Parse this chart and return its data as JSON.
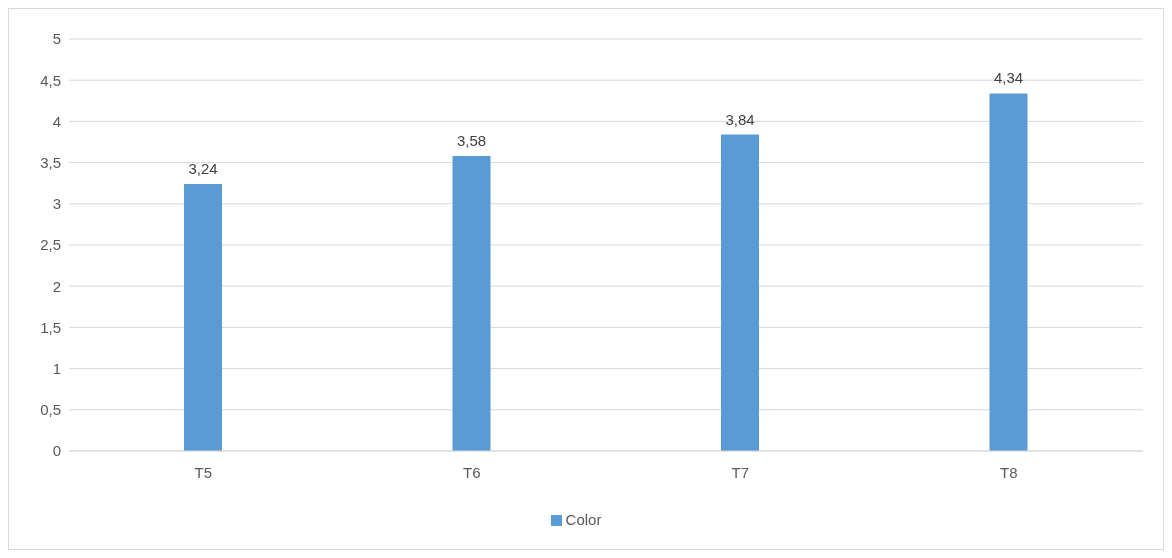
{
  "chart_data": {
    "type": "bar",
    "categories": [
      "T5",
      "T6",
      "T7",
      "T8"
    ],
    "series": [
      {
        "name": "Color",
        "color": "#5b9bd5",
        "values": [
          3.24,
          3.58,
          3.84,
          4.34
        ],
        "value_labels": [
          "3,24",
          "3,58",
          "3,84",
          "4,34"
        ]
      }
    ],
    "ylim": [
      0,
      5
    ],
    "yticks": [
      0,
      {
        "value": 0.5,
        "label": "0,5"
      },
      1,
      {
        "value": 1.5,
        "label": "1,5"
      },
      2,
      {
        "value": 2.5,
        "label": "2,5"
      },
      3,
      {
        "value": 3.5,
        "label": "3,5"
      },
      4,
      {
        "value": 4.5,
        "label": "4,5"
      },
      5
    ],
    "grid": "y",
    "legend": "bottom"
  }
}
